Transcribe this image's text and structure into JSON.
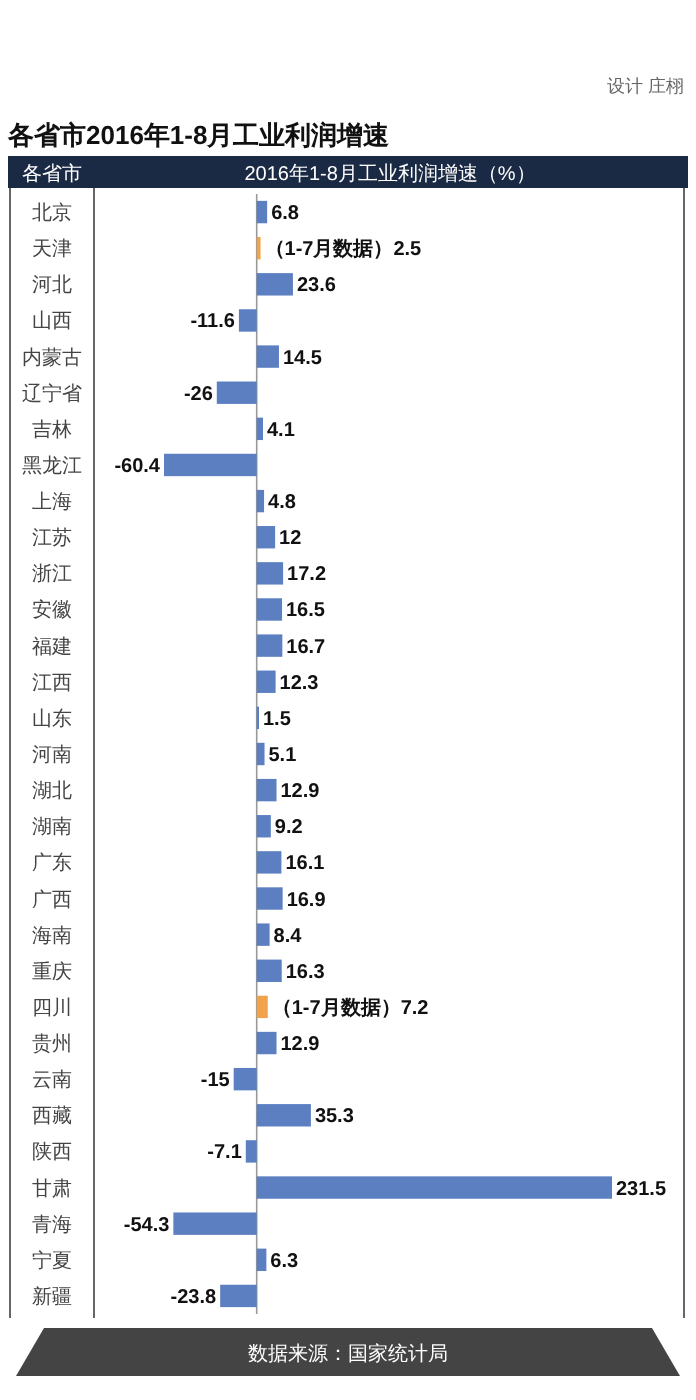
{
  "chart_data": {
    "type": "bar",
    "orientation": "horizontal",
    "title": "各省市2016年1-8月工业利润增速",
    "ylabel": "各省市",
    "xlabel": "2016年1-8月工业利润增速（%）",
    "categories": [
      "北京",
      "天津",
      "河北",
      "山西",
      "内蒙古",
      "辽宁省",
      "吉林",
      "黑龙江",
      "上海",
      "江苏",
      "浙江",
      "安徽",
      "福建",
      "江西",
      "山东",
      "河南",
      "湖北",
      "湖南",
      "广东",
      "广西",
      "海南",
      "重庆",
      "四川",
      "贵州",
      "云南",
      "西藏",
      "陕西",
      "甘肃",
      "青海",
      "宁夏",
      "新疆"
    ],
    "values": [
      6.8,
      2.5,
      23.6,
      -11.6,
      14.5,
      -26,
      4.1,
      -60.4,
      4.8,
      12,
      17.2,
      16.5,
      16.7,
      12.3,
      1.5,
      5.1,
      12.9,
      9.2,
      16.1,
      16.9,
      8.4,
      16.3,
      7.2,
      12.9,
      -15,
      35.3,
      -7.1,
      231.5,
      -54.3,
      6.3,
      -23.8
    ],
    "colors": [
      "#5b7fc1",
      "#f0a34a",
      "#5b7fc1",
      "#5b7fc1",
      "#5b7fc1",
      "#5b7fc1",
      "#5b7fc1",
      "#5b7fc1",
      "#5b7fc1",
      "#5b7fc1",
      "#5b7fc1",
      "#5b7fc1",
      "#5b7fc1",
      "#5b7fc1",
      "#5b7fc1",
      "#5b7fc1",
      "#5b7fc1",
      "#5b7fc1",
      "#5b7fc1",
      "#5b7fc1",
      "#5b7fc1",
      "#5b7fc1",
      "#f0a34a",
      "#5b7fc1",
      "#5b7fc1",
      "#5b7fc1",
      "#5b7fc1",
      "#5b7fc1",
      "#5b7fc1",
      "#5b7fc1",
      "#5b7fc1"
    ],
    "value_labels": [
      "6.8",
      "（1-7月数据）2.5",
      "23.6",
      "-11.6",
      "14.5",
      "-26",
      "4.1",
      "-60.4",
      "4.8",
      "12",
      "17.2",
      "16.5",
      "16.7",
      "12.3",
      "1.5",
      "5.1",
      "12.9",
      "9.2",
      "16.1",
      "16.9",
      "8.4",
      "16.3",
      "（1-7月数据）7.2",
      "12.9",
      "-15",
      "35.3",
      "-7.1",
      "231.5",
      "-54.3",
      "6.3",
      "-23.8"
    ],
    "annotations": [
      "数据来源：国家统计局",
      "设计 庄栩"
    ]
  }
}
